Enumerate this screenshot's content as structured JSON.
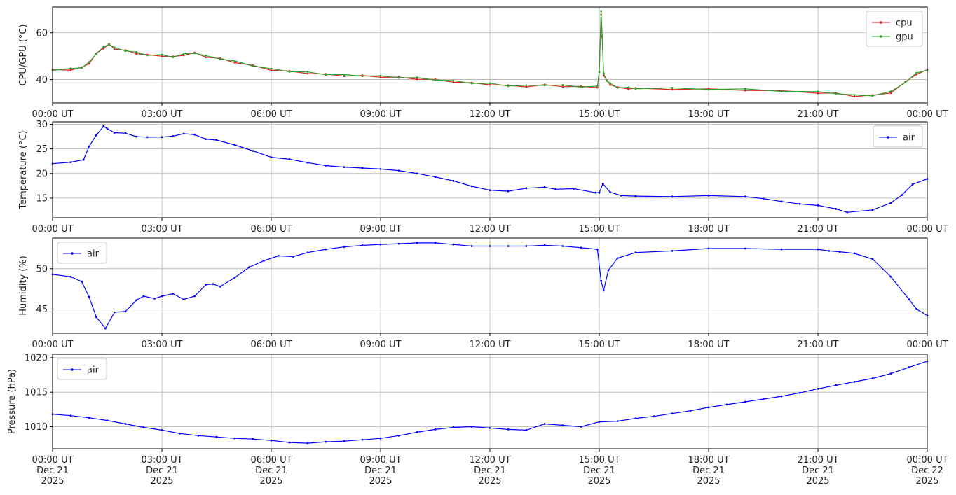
{
  "chart_data": [
    {
      "type": "line",
      "ylabel": "CPU/GPU (°C)",
      "x_tick_labels": [
        "00:00 UT",
        "03:00 UT",
        "06:00 UT",
        "09:00 UT",
        "12:00 UT",
        "15:00 UT",
        "18:00 UT",
        "21:00 UT",
        "00:00 UT"
      ],
      "ylim": [
        30,
        71
      ],
      "y_ticks": [
        40,
        60
      ],
      "grid": true,
      "legend_position": "top-right",
      "x_hours": [
        0,
        0.5,
        0.8,
        1.0,
        1.2,
        1.4,
        1.55,
        1.7,
        2.0,
        2.3,
        2.6,
        3.0,
        3.3,
        3.6,
        3.9,
        4.2,
        4.6,
        5.0,
        5.5,
        6.0,
        6.5,
        7.0,
        7.5,
        8.0,
        8.5,
        9.0,
        9.5,
        10.0,
        10.5,
        11.0,
        11.5,
        12.0,
        12.5,
        13.0,
        13.5,
        14.0,
        14.5,
        14.95,
        15.0,
        15.05,
        15.08,
        15.12,
        15.2,
        15.3,
        15.5,
        15.8,
        16.0,
        17.0,
        18.0,
        19.0,
        20.0,
        21.0,
        21.5,
        22.0,
        22.5,
        23.0,
        23.4,
        23.7,
        24.0
      ],
      "series": [
        {
          "name": "cpu",
          "color": "#d62728",
          "values": [
            44,
            44.3,
            45,
            47,
            51,
            53.5,
            55,
            53.2,
            52.3,
            51.3,
            50.4,
            50.2,
            49.6,
            50.6,
            51.3,
            49.8,
            48.8,
            47.5,
            45.8,
            44.2,
            43.4,
            42.8,
            42.1,
            41.7,
            41.5,
            41.2,
            40.8,
            40.4,
            39.8,
            39.1,
            38.4,
            38,
            37.3,
            37.1,
            37.6,
            37.2,
            36.8,
            36.8,
            43,
            68,
            58,
            42,
            39.5,
            38,
            36.5,
            36.2,
            36.1,
            36,
            35.8,
            35.6,
            35,
            34.4,
            34,
            33,
            33.1,
            34.5,
            38.8,
            42.4,
            44
          ]
        },
        {
          "name": "gpu",
          "color": "#2ca02c",
          "values": [
            44.2,
            44.5,
            45.2,
            47.2,
            51.2,
            53.8,
            55.2,
            53.4,
            52.5,
            51.5,
            50.6,
            50.4,
            49.8,
            50.8,
            51.5,
            50,
            49,
            47.7,
            46,
            44.4,
            43.6,
            43,
            42.3,
            41.9,
            41.7,
            41.4,
            41,
            40.6,
            40,
            39.3,
            38.6,
            38.2,
            37.5,
            37.3,
            37.8,
            37.4,
            37,
            37,
            43.5,
            69,
            59,
            42.5,
            39.7,
            38.2,
            36.7,
            36.4,
            36.3,
            36.2,
            36,
            35.8,
            35.2,
            34.6,
            34.2,
            33.2,
            33.3,
            34.7,
            39,
            42.6,
            44.2
          ]
        }
      ]
    },
    {
      "type": "line",
      "ylabel": "Temperature (°C)",
      "x_tick_labels": [
        "00:00 UT",
        "03:00 UT",
        "06:00 UT",
        "09:00 UT",
        "12:00 UT",
        "15:00 UT",
        "18:00 UT",
        "21:00 UT",
        "00:00 UT"
      ],
      "ylim": [
        11,
        30.5
      ],
      "y_ticks": [
        15,
        20,
        25,
        30
      ],
      "grid": true,
      "legend_position": "top-right",
      "x_hours": [
        0,
        0.5,
        0.85,
        1.0,
        1.2,
        1.4,
        1.5,
        1.7,
        2.0,
        2.3,
        2.6,
        3.0,
        3.3,
        3.6,
        3.9,
        4.2,
        4.5,
        5.0,
        5.5,
        6.0,
        6.5,
        7.0,
        7.5,
        8.0,
        8.5,
        9.0,
        9.5,
        10.0,
        10.5,
        11.0,
        11.5,
        12.0,
        12.5,
        13.0,
        13.5,
        13.8,
        14.3,
        14.9,
        15.0,
        15.1,
        15.3,
        15.6,
        16.0,
        17.0,
        18.0,
        19.0,
        19.5,
        20.0,
        20.5,
        21.0,
        21.5,
        21.8,
        22.5,
        23.0,
        23.3,
        23.6,
        24.0
      ],
      "series": [
        {
          "name": "air",
          "color": "#0000ff",
          "values": [
            22,
            22.3,
            22.8,
            25.5,
            27.8,
            29.6,
            29.1,
            28.3,
            28.2,
            27.5,
            27.4,
            27.4,
            27.6,
            28.1,
            27.9,
            27,
            26.8,
            25.8,
            24.6,
            23.3,
            22.9,
            22.2,
            21.6,
            21.3,
            21.1,
            20.9,
            20.6,
            20,
            19.3,
            18.5,
            17.4,
            16.6,
            16.4,
            17,
            17.2,
            16.8,
            16.9,
            16.1,
            16.1,
            17.9,
            16.2,
            15.5,
            15.4,
            15.3,
            15.5,
            15.3,
            14.9,
            14.3,
            13.8,
            13.5,
            12.8,
            12.1,
            12.6,
            14,
            15.6,
            17.8,
            18.9
          ]
        }
      ]
    },
    {
      "type": "line",
      "ylabel": "Humidity (%)",
      "x_tick_labels": [
        "00:00 UT",
        "03:00 UT",
        "06:00 UT",
        "09:00 UT",
        "12:00 UT",
        "15:00 UT",
        "18:00 UT",
        "21:00 UT",
        "00:00 UT"
      ],
      "ylim": [
        42,
        53.8
      ],
      "y_ticks": [
        45,
        50
      ],
      "grid": true,
      "legend_position": "top-left",
      "x_hours": [
        0,
        0.5,
        0.8,
        1.0,
        1.2,
        1.45,
        1.7,
        2.0,
        2.3,
        2.5,
        2.8,
        3.0,
        3.3,
        3.6,
        3.9,
        4.2,
        4.4,
        4.6,
        5.0,
        5.4,
        5.8,
        6.2,
        6.6,
        7.0,
        7.5,
        8.0,
        8.5,
        9.0,
        9.5,
        10.0,
        10.5,
        11.0,
        11.5,
        12.0,
        12.5,
        13.0,
        13.5,
        14.0,
        14.5,
        14.95,
        15.05,
        15.12,
        15.25,
        15.5,
        16.0,
        17.0,
        18.0,
        19.0,
        20.0,
        21.0,
        21.3,
        21.6,
        22.0,
        22.5,
        23.0,
        23.5,
        23.7,
        24.0
      ],
      "series": [
        {
          "name": "air",
          "color": "#0000ff",
          "values": [
            49.3,
            49,
            48.4,
            46.5,
            44,
            42.6,
            44.6,
            44.7,
            46.1,
            46.6,
            46.3,
            46.6,
            46.9,
            46.2,
            46.6,
            48,
            48.1,
            47.8,
            48.9,
            50.2,
            51,
            51.6,
            51.5,
            52,
            52.4,
            52.7,
            52.9,
            53,
            53.1,
            53.2,
            53.2,
            53,
            52.8,
            52.8,
            52.8,
            52.8,
            52.9,
            52.8,
            52.6,
            52.4,
            48.5,
            47.3,
            49.8,
            51.3,
            52,
            52.2,
            52.5,
            52.5,
            52.4,
            52.4,
            52.2,
            52.1,
            51.9,
            51.2,
            49,
            46.2,
            45,
            44.2
          ]
        }
      ]
    },
    {
      "type": "line",
      "ylabel": "Pressure (hPa)",
      "x_tick_labels": [
        "00:00 UT\nDec 21\n2025",
        "03:00 UT\nDec 21\n2025",
        "06:00 UT\nDec 21\n2025",
        "09:00 UT\nDec 21\n2025",
        "12:00 UT\nDec 21\n2025",
        "15:00 UT\nDec 21\n2025",
        "18:00 UT\nDec 21\n2025",
        "21:00 UT\nDec 21\n2025",
        "00:00 UT\nDec 22\n2025"
      ],
      "ylim": [
        1006.8,
        1020.5
      ],
      "y_ticks": [
        1010,
        1015,
        1020
      ],
      "grid": true,
      "legend_position": "top-left",
      "x_hours": [
        0,
        0.5,
        1.0,
        1.5,
        2.0,
        2.5,
        3.0,
        3.5,
        4.0,
        4.5,
        5.0,
        5.5,
        6.0,
        6.5,
        7.0,
        7.5,
        8.0,
        8.5,
        9.0,
        9.5,
        10.0,
        10.5,
        11.0,
        11.5,
        12.0,
        12.5,
        13.0,
        13.5,
        14.0,
        14.5,
        15.0,
        15.5,
        16.0,
        16.5,
        17.0,
        17.5,
        18.0,
        18.5,
        19.0,
        19.5,
        20.0,
        20.5,
        21.0,
        21.5,
        22.0,
        22.5,
        23.0,
        23.5,
        24.0
      ],
      "series": [
        {
          "name": "air",
          "color": "#0000ff",
          "values": [
            1011.8,
            1011.6,
            1011.3,
            1010.9,
            1010.4,
            1009.9,
            1009.5,
            1009,
            1008.7,
            1008.5,
            1008.3,
            1008.2,
            1008,
            1007.7,
            1007.6,
            1007.8,
            1007.9,
            1008.1,
            1008.3,
            1008.7,
            1009.2,
            1009.6,
            1009.9,
            1010,
            1009.8,
            1009.6,
            1009.5,
            1010.4,
            1010.2,
            1010,
            1010.7,
            1010.8,
            1011.2,
            1011.5,
            1011.9,
            1012.3,
            1012.8,
            1013.2,
            1013.6,
            1014,
            1014.4,
            1014.9,
            1015.5,
            1016,
            1016.5,
            1017,
            1017.7,
            1018.6,
            1019.5
          ]
        }
      ]
    }
  ]
}
